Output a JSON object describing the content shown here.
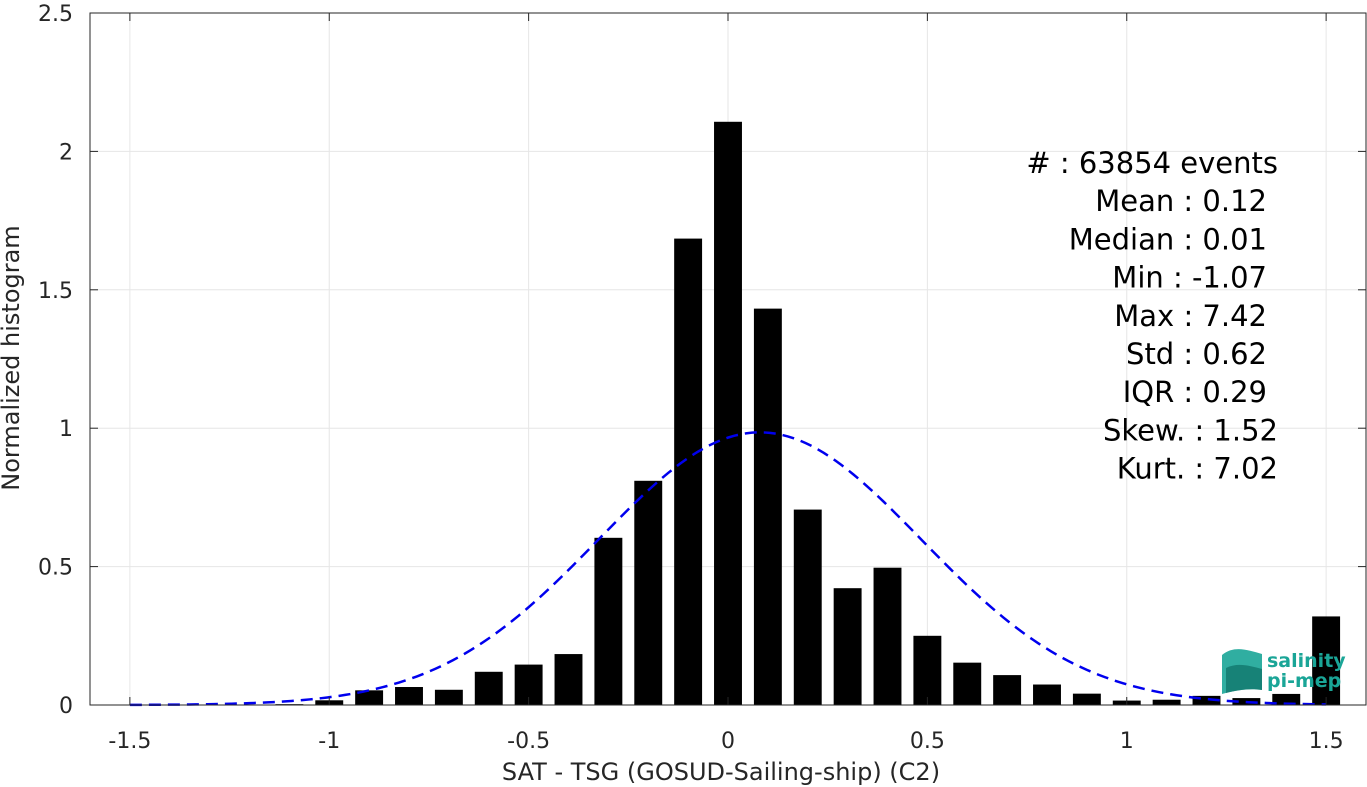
{
  "chart_data": {
    "type": "bar",
    "xlabel": "SAT - TSG (GOSUD-Sailing-ship) (C2)",
    "ylabel": "Normalized histogram",
    "xlim": [
      -1.6,
      1.6
    ],
    "ylim": [
      0,
      2.5
    ],
    "grid": true,
    "xticks": [
      -1.5,
      -1,
      -0.5,
      0,
      0.5,
      1,
      1.5
    ],
    "xtick_labels": [
      "-1.5",
      "-1",
      "-0.5",
      "0",
      "0.5",
      "1",
      "1.5"
    ],
    "yticks": [
      0,
      0.5,
      1,
      1.5,
      2,
      2.5
    ],
    "ytick_labels": [
      "0",
      "0.5",
      "1",
      "1.5",
      "2",
      "2.5"
    ],
    "bar_width": 0.07,
    "bar_color": "#000000",
    "bins": [
      {
        "x": -1.5,
        "y": 0.0
      },
      {
        "x": -1.4,
        "y": 0.0
      },
      {
        "x": -1.3,
        "y": 0.0
      },
      {
        "x": -1.2,
        "y": 0.0
      },
      {
        "x": -1.1,
        "y": 0.003
      },
      {
        "x": -1.0,
        "y": 0.017
      },
      {
        "x": -0.9,
        "y": 0.053
      },
      {
        "x": -0.8,
        "y": 0.065
      },
      {
        "x": -0.7,
        "y": 0.055
      },
      {
        "x": -0.6,
        "y": 0.12
      },
      {
        "x": -0.5,
        "y": 0.146
      },
      {
        "x": -0.4,
        "y": 0.184
      },
      {
        "x": -0.3,
        "y": 0.604
      },
      {
        "x": -0.2,
        "y": 0.81
      },
      {
        "x": -0.1,
        "y": 1.685
      },
      {
        "x": 0.0,
        "y": 2.107
      },
      {
        "x": 0.1,
        "y": 1.432
      },
      {
        "x": 0.2,
        "y": 0.706
      },
      {
        "x": 0.3,
        "y": 0.422
      },
      {
        "x": 0.4,
        "y": 0.496
      },
      {
        "x": 0.5,
        "y": 0.25
      },
      {
        "x": 0.6,
        "y": 0.153
      },
      {
        "x": 0.7,
        "y": 0.108
      },
      {
        "x": 0.8,
        "y": 0.074
      },
      {
        "x": 0.9,
        "y": 0.041
      },
      {
        "x": 1.0,
        "y": 0.016
      },
      {
        "x": 1.1,
        "y": 0.019
      },
      {
        "x": 1.2,
        "y": 0.033
      },
      {
        "x": 1.3,
        "y": 0.025
      },
      {
        "x": 1.4,
        "y": 0.04
      },
      {
        "x": 1.5,
        "y": 0.32
      }
    ],
    "gaussian_fit": {
      "mean": 0.08,
      "std": 0.405,
      "peak": 0.985,
      "x_range": [
        -1.5,
        1.5
      ],
      "color": "#0000ee",
      "style": "dashed"
    },
    "stats_annotation": [
      {
        "label": "#  ",
        "value": "63854 events"
      },
      {
        "label": "Mean ",
        "value": "0.12"
      },
      {
        "label": "Median ",
        "value": "0.01"
      },
      {
        "label": "Min ",
        "value": "-1.07"
      },
      {
        "label": "Max ",
        "value": "7.42"
      },
      {
        "label": "Std ",
        "value": "0.62"
      },
      {
        "label": "IQR ",
        "value": "0.29"
      },
      {
        "label": "Skew. ",
        "value": "1.52"
      },
      {
        "label": "Kurt. ",
        "value": "7.02"
      }
    ]
  },
  "logo": {
    "line1": "salinity",
    "line2": "pi-mep",
    "color": "#1aa597"
  }
}
